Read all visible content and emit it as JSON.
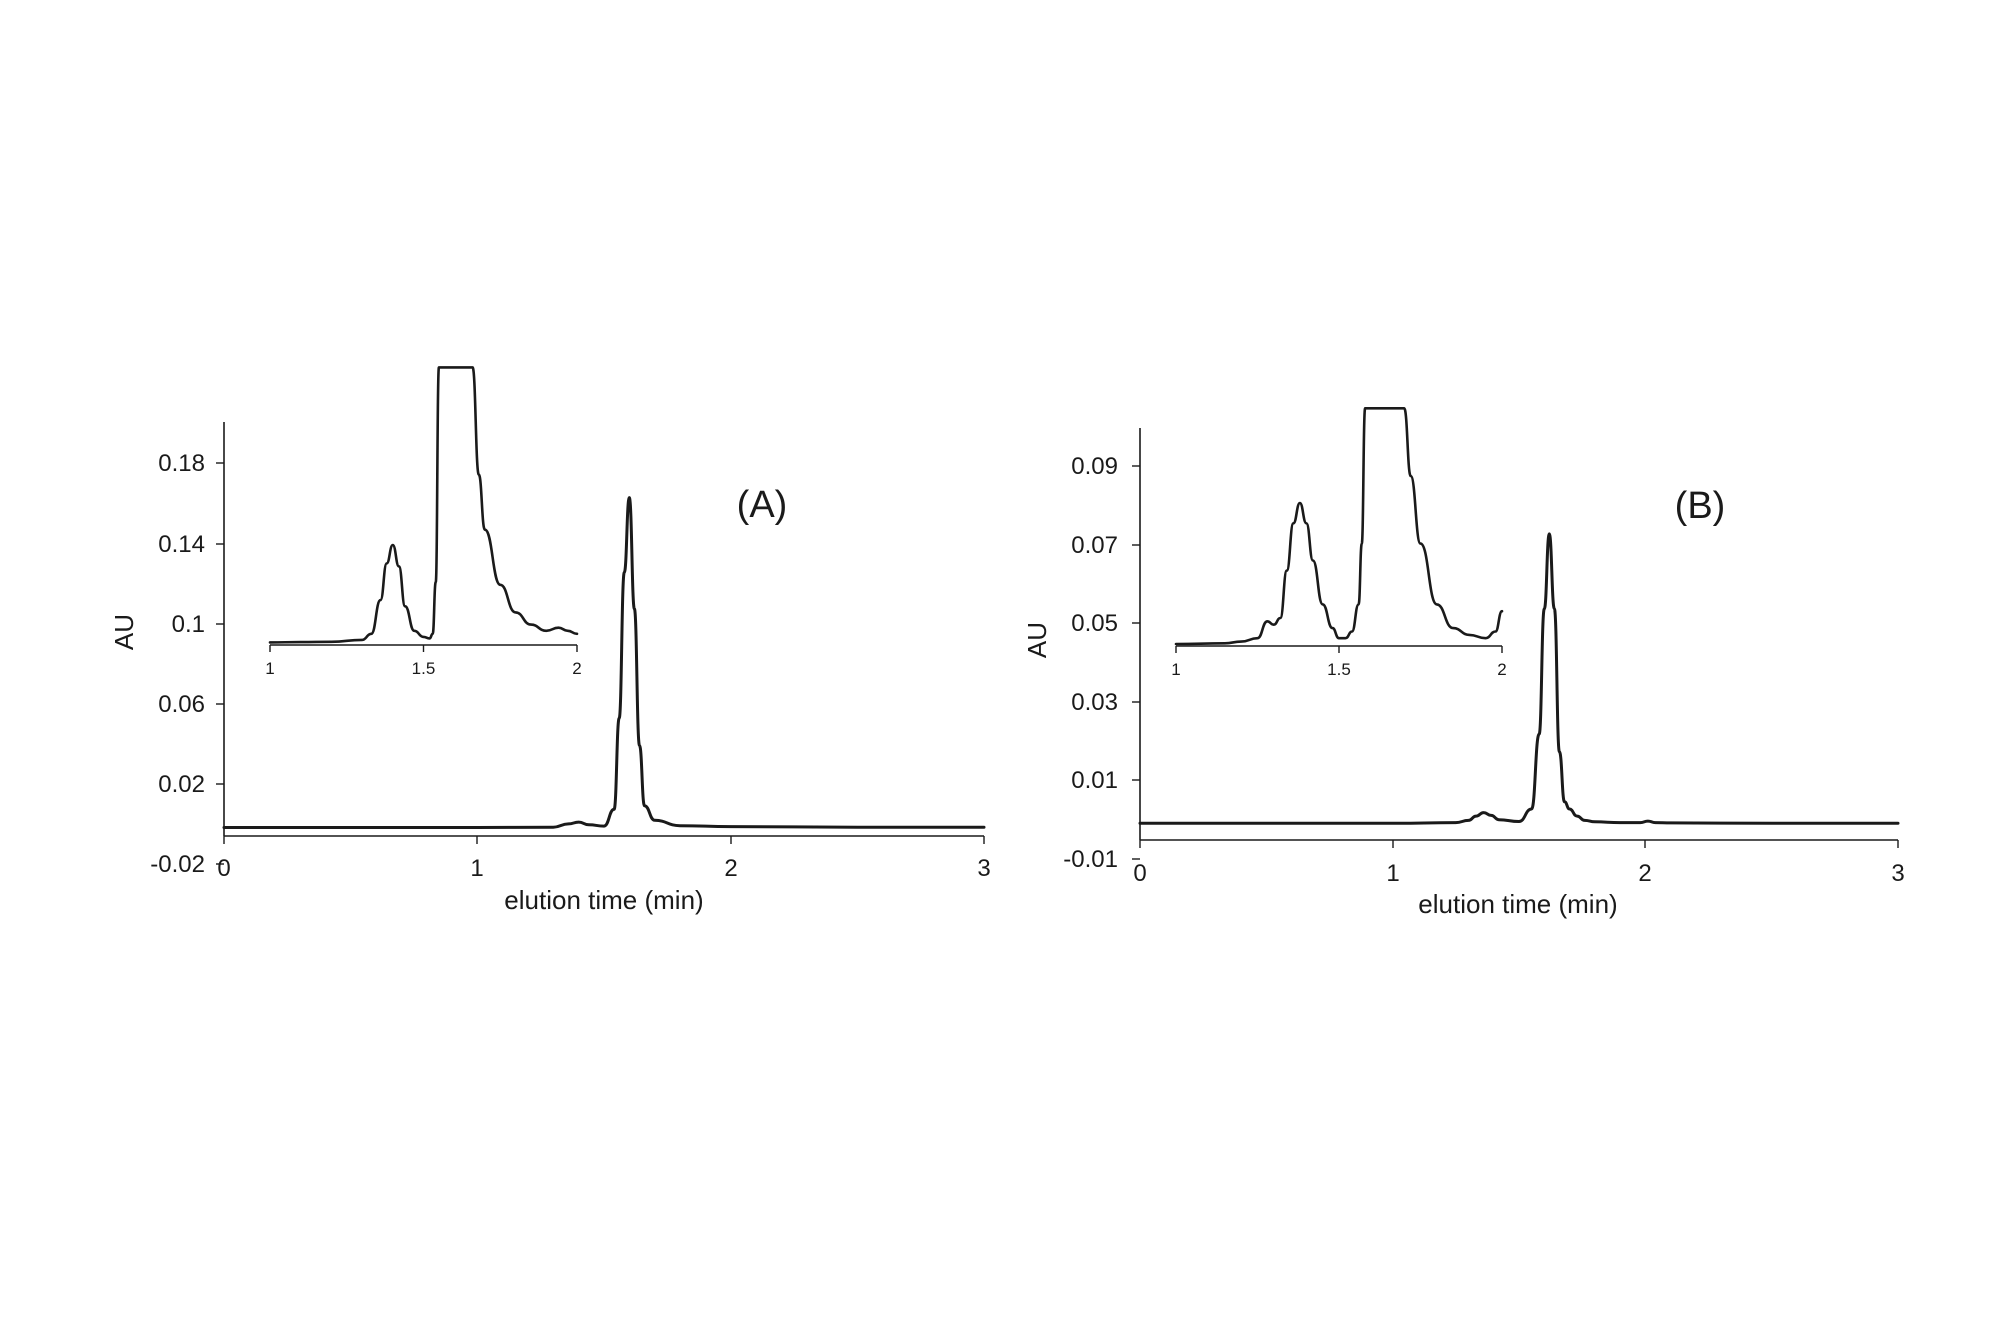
{
  "chart_data": [
    {
      "type": "line",
      "panel_label": "(A)",
      "xlabel": "elution time (min)",
      "ylabel": "AU",
      "xlim": [
        0,
        3
      ],
      "ylim": [
        -0.02,
        0.2
      ],
      "x_ticks": [
        "0",
        "1",
        "2",
        "3"
      ],
      "y_ticks": [
        "-0.02",
        "0.02",
        "0.06",
        "0.1",
        "0.14",
        "0.18"
      ],
      "series": [
        {
          "x": [
            0,
            0.5,
            1.0,
            1.3,
            1.36,
            1.4,
            1.44,
            1.5,
            1.54,
            1.56,
            1.58,
            1.6,
            1.62,
            1.64,
            1.66,
            1.7,
            1.8,
            2.0,
            2.5,
            3.0
          ],
          "y": [
            0,
            0,
            0,
            0.0002,
            0.002,
            0.003,
            0.0015,
            0.0008,
            0.01,
            0.06,
            0.14,
            0.181,
            0.12,
            0.045,
            0.012,
            0.004,
            0.001,
            0.0005,
            0.0002,
            0.0002
          ]
        }
      ],
      "inset": {
        "xlim": [
          1,
          2
        ],
        "x_ticks": [
          "1",
          "1.5",
          "2"
        ],
        "series": [
          {
            "x": [
              1.0,
              1.1,
              1.2,
              1.3,
              1.33,
              1.36,
              1.38,
              1.4,
              1.42,
              1.44,
              1.47,
              1.5,
              1.52,
              1.53,
              1.54,
              1.55,
              1.66,
              1.68,
              1.7,
              1.75,
              1.8,
              1.85,
              1.9,
              1.94,
              1.97,
              2.0
            ],
            "y": [
              0.0002,
              0.0003,
              0.0004,
              0.001,
              0.003,
              0.014,
              0.026,
              0.032,
              0.025,
              0.012,
              0.004,
              0.002,
              0.0015,
              0.003,
              0.02,
              0.09,
              0.09,
              0.055,
              0.037,
              0.019,
              0.01,
              0.006,
              0.004,
              0.005,
              0.004,
              0.003
            ]
          }
        ]
      }
    },
    {
      "type": "line",
      "panel_label": "(B)",
      "xlabel": "elution time (min)",
      "ylabel": "AU",
      "xlim": [
        0,
        3
      ],
      "ylim": [
        -0.01,
        0.1
      ],
      "x_ticks": [
        "0",
        "1",
        "2",
        "3"
      ],
      "y_ticks": [
        "-0.01",
        "0.01",
        "0.03",
        "0.05",
        "0.07",
        "0.09"
      ],
      "series": [
        {
          "x": [
            0,
            0.5,
            1.0,
            1.25,
            1.3,
            1.33,
            1.36,
            1.39,
            1.42,
            1.5,
            1.55,
            1.58,
            1.6,
            1.62,
            1.64,
            1.66,
            1.68,
            1.7,
            1.73,
            1.76,
            1.8,
            1.9,
            1.98,
            2.01,
            2.04,
            2.1,
            2.5,
            3.0
          ],
          "y": [
            0,
            0,
            0,
            0.0002,
            0.0008,
            0.002,
            0.003,
            0.0022,
            0.001,
            0.0005,
            0.004,
            0.025,
            0.06,
            0.081,
            0.06,
            0.02,
            0.006,
            0.004,
            0.002,
            0.0008,
            0.0004,
            0.0002,
            0.0002,
            0.0006,
            0.0002,
            0.0001,
            0,
            0
          ]
        }
      ],
      "inset": {
        "xlim": [
          1,
          2
        ],
        "x_ticks": [
          "1",
          "1.5",
          "2"
        ],
        "series": [
          {
            "x": [
              1.0,
              1.15,
              1.2,
              1.25,
              1.28,
              1.3,
              1.32,
              1.34,
              1.36,
              1.38,
              1.4,
              1.42,
              1.45,
              1.48,
              1.5,
              1.52,
              1.54,
              1.56,
              1.57,
              1.58,
              1.7,
              1.72,
              1.75,
              1.8,
              1.85,
              1.9,
              1.95,
              1.98,
              2.0
            ],
            "y": [
              0.0003,
              0.0005,
              0.001,
              0.002,
              0.007,
              0.006,
              0.008,
              0.022,
              0.036,
              0.042,
              0.036,
              0.025,
              0.012,
              0.005,
              0.002,
              0.002,
              0.004,
              0.012,
              0.03,
              0.07,
              0.07,
              0.05,
              0.03,
              0.012,
              0.005,
              0.003,
              0.002,
              0.004,
              0.01
            ]
          }
        ]
      }
    }
  ]
}
